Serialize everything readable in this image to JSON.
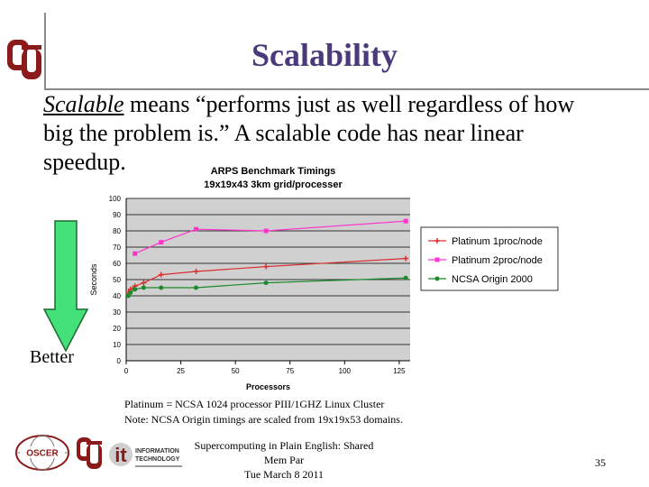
{
  "slide": {
    "title": "Scalability",
    "body": {
      "term": "Scalable",
      "rest": " means “performs just as well regardless of how big the problem is.” A scalable code has near linear speedup."
    },
    "better_label": "Better",
    "note_lines": [
      "Platinum = NCSA 1024 processor PIII/1GHZ Linux Cluster",
      "Note: NCSA Origin timings are scaled from 19x19x53 domains."
    ],
    "footer_lines": [
      "Supercomputing in Plain English: Shared Mem Par",
      "Tue March 8 2011"
    ],
    "page_number": "35",
    "logos": {
      "oscer": "OSCER",
      "it_mark": "it",
      "it_text_1": "INFORMATION",
      "it_text_2": "TECHNOLOGY"
    }
  },
  "chart_data": {
    "type": "line",
    "title": "ARPS Benchmark Timings",
    "subtitle": "19x19x43 3km grid/processer",
    "xlabel": "Processors",
    "ylabel": "Seconds",
    "xlim": [
      0,
      130
    ],
    "ylim": [
      0,
      100
    ],
    "xticks": [
      "0",
      "25",
      "50",
      "75",
      "100",
      "125"
    ],
    "yticks": [
      "0",
      "10",
      "20",
      "30",
      "40",
      "50",
      "60",
      "70",
      "80",
      "90",
      "100"
    ],
    "legend_position": "right",
    "grid": true,
    "series": [
      {
        "name": "Platinum 1proc/node",
        "color": "#d93030",
        "marker": "cross",
        "x": [
          1,
          2,
          4,
          8,
          16,
          32,
          64,
          128
        ],
        "y": [
          42,
          44,
          46,
          48,
          53,
          55,
          58,
          63
        ]
      },
      {
        "name": "Platinum 2proc/node",
        "color": "#ff33cc",
        "marker": "square",
        "x": [
          4,
          16,
          32,
          64,
          128
        ],
        "y": [
          66,
          73,
          81,
          80,
          86
        ]
      },
      {
        "name": "NCSA Origin 2000",
        "color": "#1a8a2a",
        "marker": "dot",
        "x": [
          1,
          2,
          4,
          8,
          16,
          32,
          64,
          128
        ],
        "y": [
          40,
          42,
          44,
          45,
          45,
          45,
          48,
          51
        ]
      }
    ]
  }
}
